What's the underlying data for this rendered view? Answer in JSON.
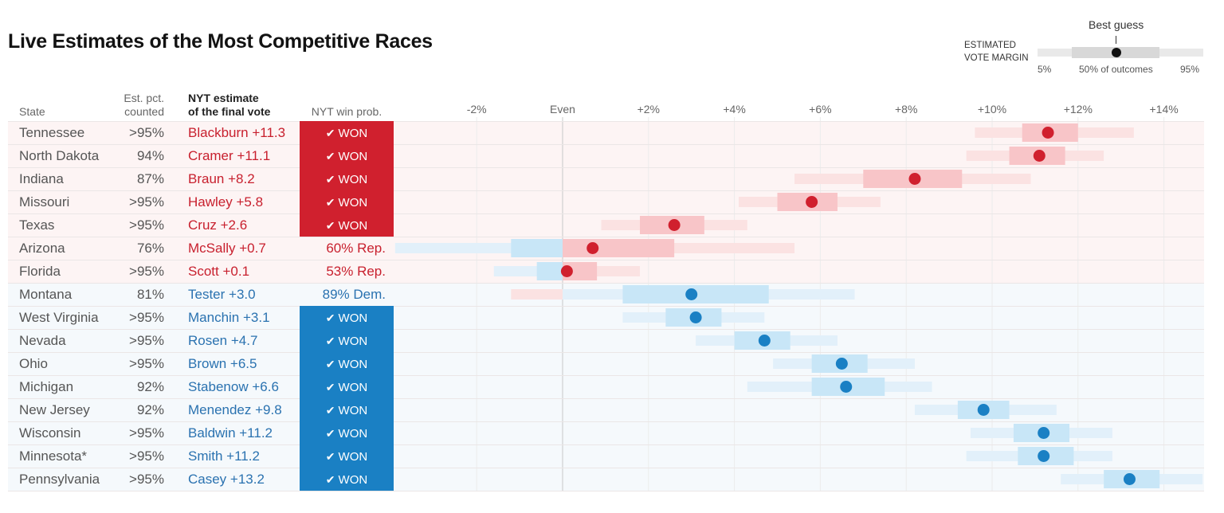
{
  "title": "Live Estimates of the Most Competitive Races",
  "legend": {
    "heading_line1": "ESTIMATED",
    "heading_line2": "VOTE MARGIN",
    "best_guess": "Best guess",
    "low_label": "5%",
    "mid_label": "50% of outcomes",
    "high_label": "95%"
  },
  "columns": {
    "state": "State",
    "counted_line1": "Est. pct.",
    "counted_line2": "counted",
    "estimate_line1": "NYT estimate",
    "estimate_line2": "of the final vote",
    "winprob": "NYT win prob."
  },
  "colors": {
    "rep_dot": "#d0202e",
    "rep_text": "#c8202e",
    "rep_won_bg": "#d0202e",
    "rep_row_bg": "#fdf4f4",
    "rep_outer": "#fbe2e2",
    "rep_inner": "#f8c5c8",
    "dem_dot": "#1a80c4",
    "dem_text": "#2a72b0",
    "dem_won_bg": "#1a80c4",
    "dem_row_bg": "#f5f9fc",
    "dem_outer": "#e2f0fa",
    "dem_inner": "#c8e6f7"
  },
  "won_label": "WON",
  "check_icon": "checkmark-icon",
  "chart_data": {
    "type": "interval-dot",
    "axis": {
      "ticks": [
        -2,
        0,
        2,
        4,
        6,
        8,
        10,
        12,
        14
      ],
      "tick_labels": [
        "-2%",
        "Even",
        "+2%",
        "+4%",
        "+6%",
        "+8%",
        "+10%",
        "+12%",
        "+14%"
      ],
      "domain": [
        -3.95,
        14.9
      ],
      "note": "negative = Democratic margin lean left, positive = Republican margin"
    },
    "rows": [
      {
        "state": "Tennessee",
        "counted": ">95%",
        "estimate": "Blackburn +11.3",
        "party": "R",
        "prob": "WON",
        "best": 11.3,
        "inner": [
          10.7,
          12.0
        ],
        "outer": [
          9.6,
          13.3
        ]
      },
      {
        "state": "North Dakota",
        "counted": "94%",
        "estimate": "Cramer +11.1",
        "party": "R",
        "prob": "WON",
        "best": 11.1,
        "inner": [
          10.4,
          11.7
        ],
        "outer": [
          9.4,
          12.6
        ]
      },
      {
        "state": "Indiana",
        "counted": "87%",
        "estimate": "Braun +8.2",
        "party": "R",
        "prob": "WON",
        "best": 8.2,
        "inner": [
          7.0,
          9.3
        ],
        "outer": [
          5.4,
          10.9
        ]
      },
      {
        "state": "Missouri",
        "counted": ">95%",
        "estimate": "Hawley +5.8",
        "party": "R",
        "prob": "WON",
        "best": 5.8,
        "inner": [
          5.0,
          6.4
        ],
        "outer": [
          4.1,
          7.4
        ]
      },
      {
        "state": "Texas",
        "counted": ">95%",
        "estimate": "Cruz +2.6",
        "party": "R",
        "prob": "WON",
        "best": 2.6,
        "inner": [
          1.8,
          3.3
        ],
        "outer": [
          0.9,
          4.3
        ]
      },
      {
        "state": "Arizona",
        "counted": "76%",
        "estimate": "McSally +0.7",
        "party": "R",
        "prob": "60% Rep.",
        "best": 0.7,
        "inner": [
          -1.2,
          2.6
        ],
        "outer": [
          -3.9,
          5.4
        ]
      },
      {
        "state": "Florida",
        "counted": ">95%",
        "estimate": "Scott +0.1",
        "party": "R",
        "prob": "53% Rep.",
        "best": 0.1,
        "inner": [
          -0.6,
          0.8
        ],
        "outer": [
          -1.6,
          1.8
        ]
      },
      {
        "state": "Montana",
        "counted": "81%",
        "estimate": "Tester +3.0",
        "party": "D",
        "prob": "89% Dem.",
        "best": 3.0,
        "inner": [
          1.4,
          4.8
        ],
        "outer": [
          -1.2,
          6.8
        ]
      },
      {
        "state": "West Virginia",
        "counted": ">95%",
        "estimate": "Manchin +3.1",
        "party": "D",
        "prob": "WON",
        "best": 3.1,
        "inner": [
          2.4,
          3.7
        ],
        "outer": [
          1.4,
          4.7
        ]
      },
      {
        "state": "Nevada",
        "counted": ">95%",
        "estimate": "Rosen +4.7",
        "party": "D",
        "prob": "WON",
        "best": 4.7,
        "inner": [
          4.0,
          5.3
        ],
        "outer": [
          3.1,
          6.4
        ]
      },
      {
        "state": "Ohio",
        "counted": ">95%",
        "estimate": "Brown +6.5",
        "party": "D",
        "prob": "WON",
        "best": 6.5,
        "inner": [
          5.8,
          7.1
        ],
        "outer": [
          4.9,
          8.2
        ]
      },
      {
        "state": "Michigan",
        "counted": "92%",
        "estimate": "Stabenow +6.6",
        "party": "D",
        "prob": "WON",
        "best": 6.6,
        "inner": [
          5.8,
          7.5
        ],
        "outer": [
          4.3,
          8.6
        ]
      },
      {
        "state": "New Jersey",
        "counted": "92%",
        "estimate": "Menendez +9.8",
        "party": "D",
        "prob": "WON",
        "best": 9.8,
        "inner": [
          9.2,
          10.4
        ],
        "outer": [
          8.2,
          11.5
        ]
      },
      {
        "state": "Wisconsin",
        "counted": ">95%",
        "estimate": "Baldwin +11.2",
        "party": "D",
        "prob": "WON",
        "best": 11.2,
        "inner": [
          10.5,
          11.8
        ],
        "outer": [
          9.5,
          12.8
        ]
      },
      {
        "state": "Minnesota*",
        "counted": ">95%",
        "estimate": "Smith +11.2",
        "party": "D",
        "prob": "WON",
        "best": 11.2,
        "inner": [
          10.6,
          11.9
        ],
        "outer": [
          9.4,
          12.8
        ]
      },
      {
        "state": "Pennsylvania",
        "counted": ">95%",
        "estimate": "Casey +13.2",
        "party": "D",
        "prob": "WON",
        "best": 13.2,
        "inner": [
          12.6,
          13.9
        ],
        "outer": [
          11.6,
          14.9
        ]
      }
    ]
  }
}
